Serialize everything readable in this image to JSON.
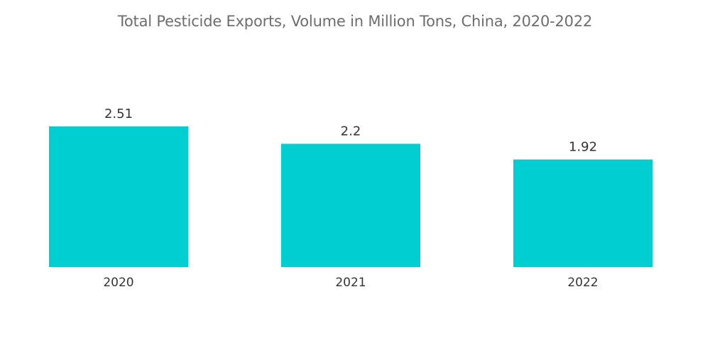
{
  "chart_data": {
    "type": "bar",
    "title": "Total Pesticide Exports, Volume in Million Tons, China, 2020-2022",
    "categories": [
      "2020",
      "2021",
      "2022"
    ],
    "values": [
      2.51,
      2.2,
      1.92
    ],
    "value_labels": [
      "2.51",
      "2.2",
      "1.92"
    ],
    "xlabel": "",
    "ylabel": "",
    "ylim": [
      0,
      2.51
    ],
    "grid": false,
    "bar_color": "#00CED1"
  }
}
